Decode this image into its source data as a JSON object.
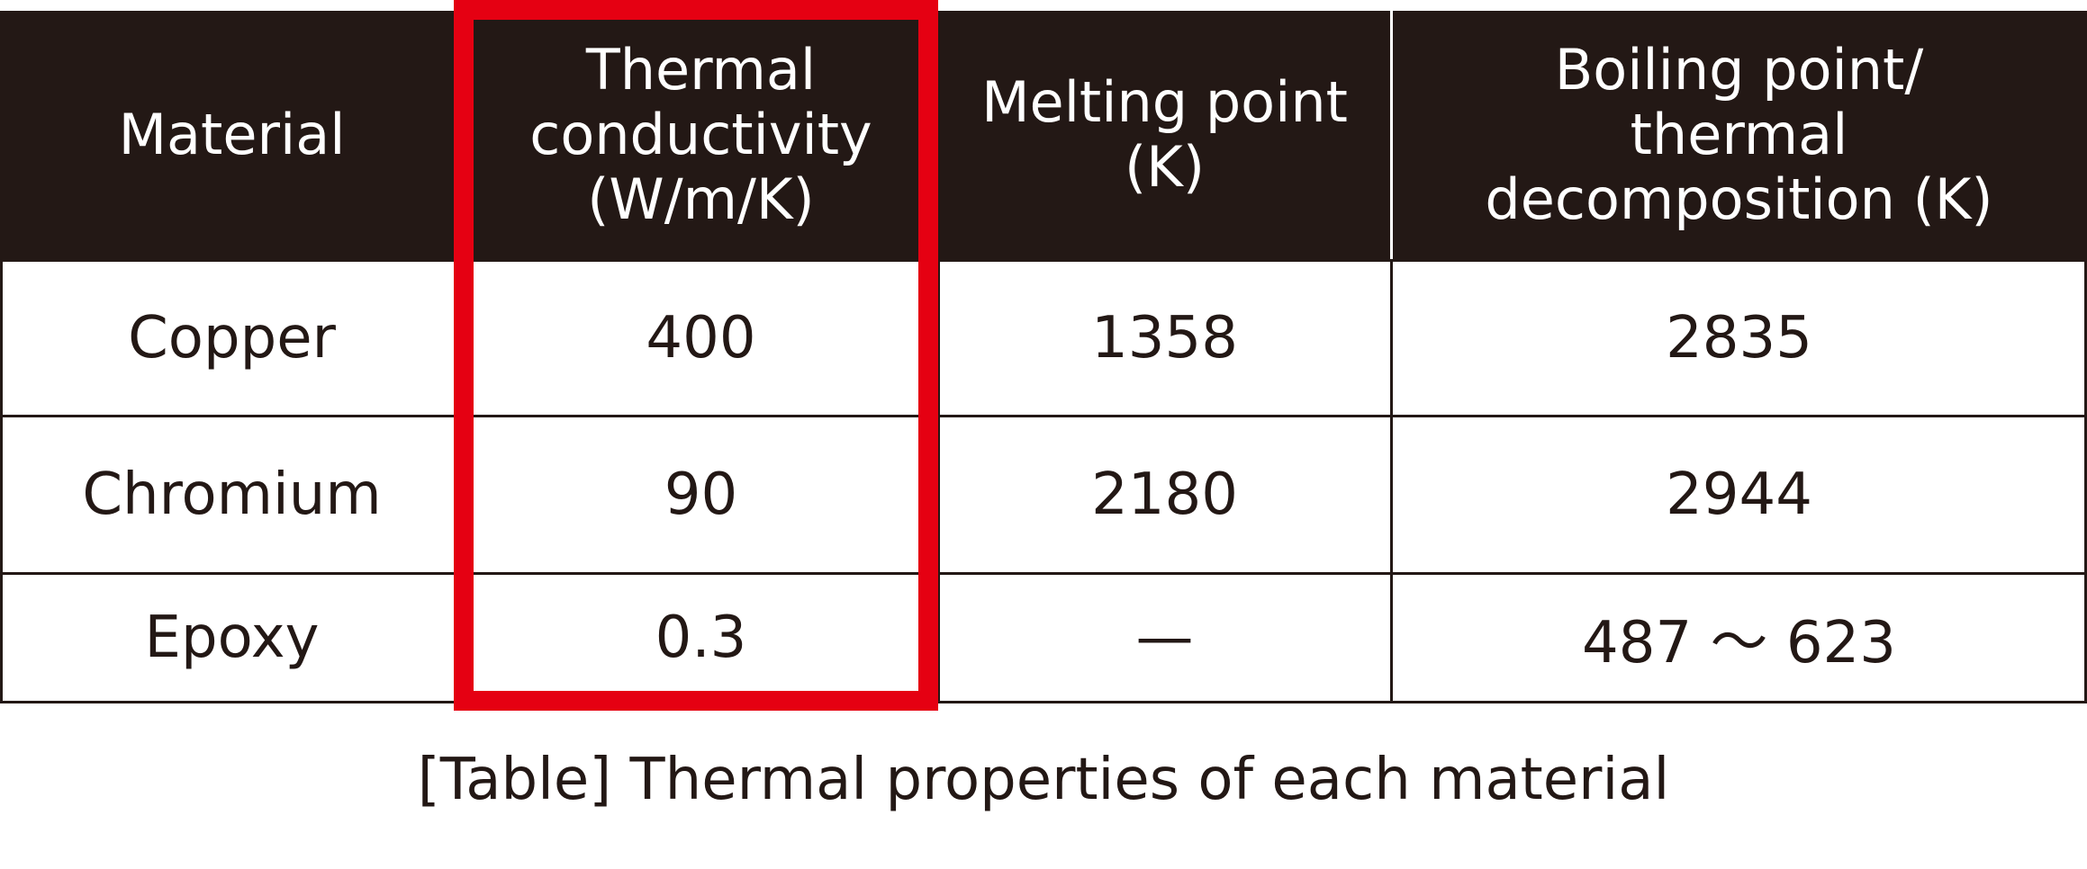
{
  "table": {
    "header": [
      [
        "Material"
      ],
      [
        "Thermal",
        "conductivity",
        "(W/m/K)"
      ],
      [
        "Melting point",
        "(K)"
      ],
      [
        "Boiling point/",
        "thermal",
        "decomposition (K)"
      ]
    ],
    "rows": [
      [
        "Copper",
        "400",
        "1358",
        "2835"
      ],
      [
        "Chromium",
        "90",
        "2180",
        "2944"
      ],
      [
        "Epoxy",
        "0.3",
        "—",
        "487 ～ 623"
      ]
    ]
  },
  "caption": "[Table] Thermal properties of each material"
}
